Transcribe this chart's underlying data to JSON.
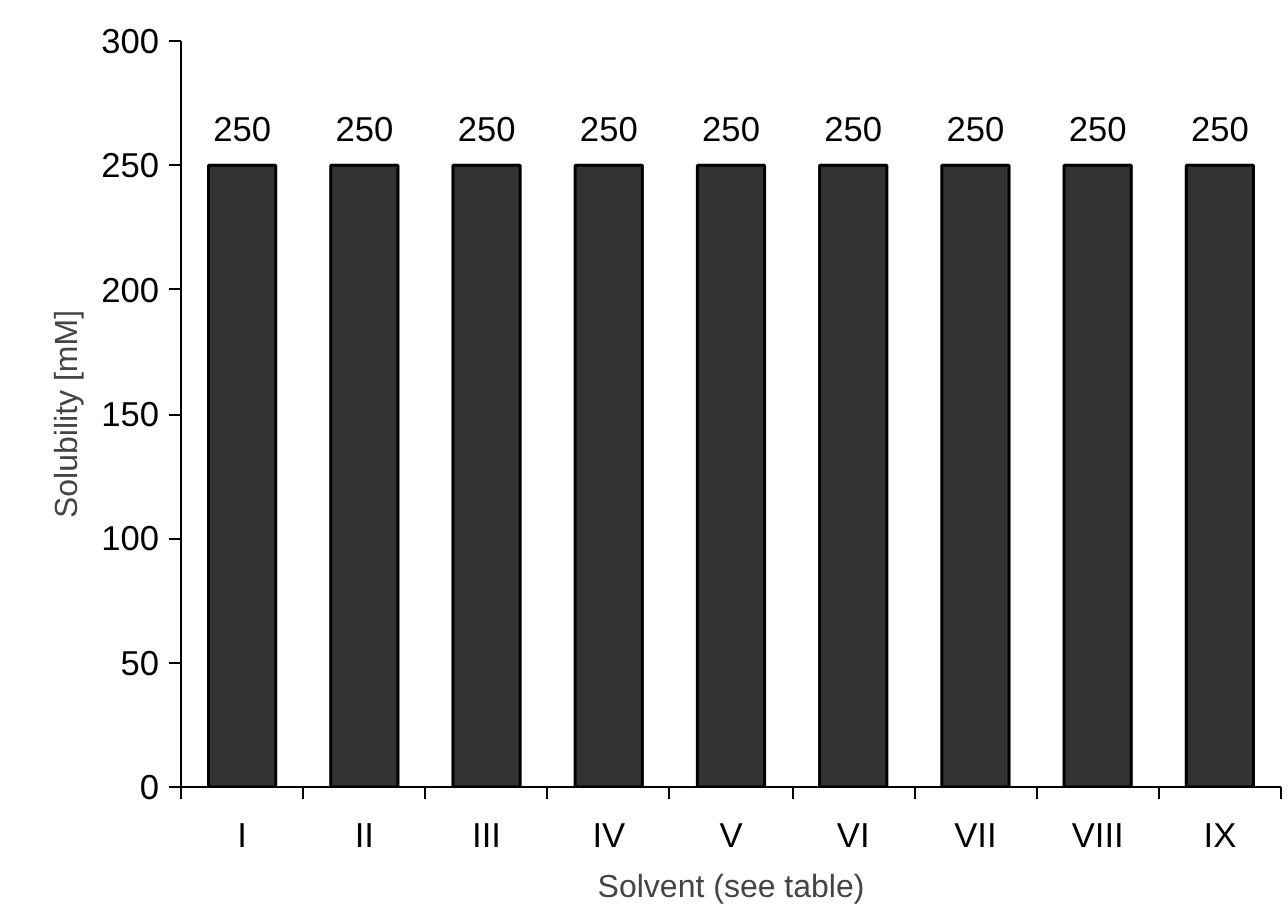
{
  "chart_data": {
    "type": "bar",
    "xlabel": "Solvent (see table)",
    "ylabel": "Solubility [mM]",
    "categories": [
      "I",
      "II",
      "III",
      "IV",
      "V",
      "VI",
      "VII",
      "VIII",
      "IX"
    ],
    "values": [
      250,
      250,
      250,
      250,
      250,
      250,
      250,
      250,
      250
    ],
    "color": "#333333",
    "ylim": [
      0,
      300
    ],
    "yticks": [
      0,
      50,
      100,
      150,
      200,
      250,
      300
    ],
    "data_labels": true,
    "grid": false
  }
}
